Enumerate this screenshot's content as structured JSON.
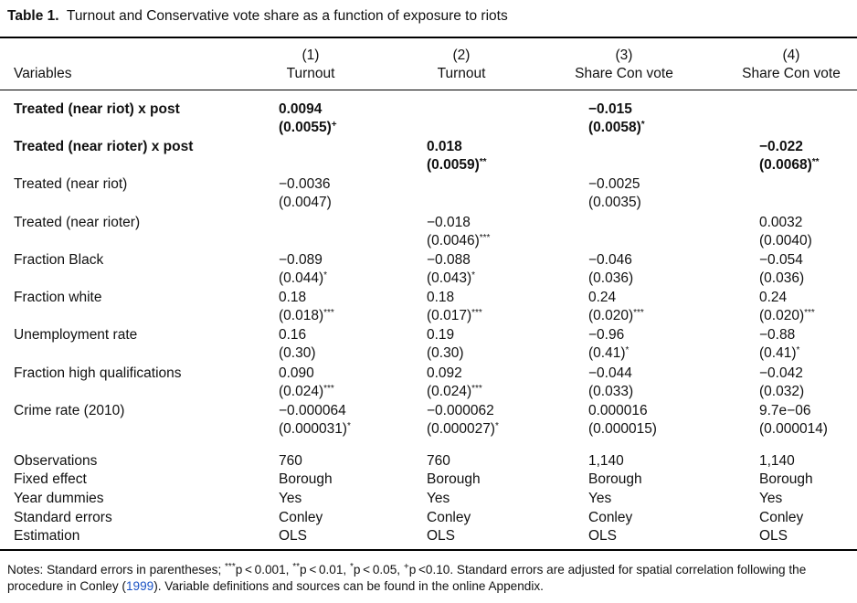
{
  "caption": {
    "label": "Table 1.",
    "title": "Turnout and Conservative vote share as a function of exposure to riots"
  },
  "header": {
    "variables_label": "Variables",
    "columns": [
      {
        "num": "(1)",
        "name": "Turnout"
      },
      {
        "num": "(2)",
        "name": "Turnout"
      },
      {
        "num": "(3)",
        "name": "Share Con vote"
      },
      {
        "num": "(4)",
        "name": "Share Con vote"
      }
    ]
  },
  "rows": [
    {
      "label": "Treated (near riot) x post",
      "bold": true,
      "cells": [
        {
          "v": "0.0094",
          "se": "(0.0055)",
          "sig": "+"
        },
        null,
        {
          "v": "−0.015",
          "se": "(0.0058)",
          "sig": "*"
        },
        null
      ]
    },
    {
      "label": "Treated (near rioter) x post",
      "bold": true,
      "cells": [
        null,
        {
          "v": "0.018",
          "se": "(0.0059)",
          "sig": "**"
        },
        null,
        {
          "v": "−0.022",
          "se": "(0.0068)",
          "sig": "**"
        }
      ]
    },
    {
      "label": "Treated (near riot)",
      "bold": false,
      "cells": [
        {
          "v": "−0.0036",
          "se": "(0.0047)",
          "sig": ""
        },
        null,
        {
          "v": "−0.0025",
          "se": "(0.0035)",
          "sig": ""
        },
        null
      ]
    },
    {
      "label": "Treated (near rioter)",
      "bold": false,
      "cells": [
        null,
        {
          "v": "−0.018",
          "se": "(0.0046)",
          "sig": "***"
        },
        null,
        {
          "v": "0.0032",
          "se": "(0.0040)",
          "sig": ""
        }
      ]
    },
    {
      "label": "Fraction Black",
      "bold": false,
      "cells": [
        {
          "v": "−0.089",
          "se": "(0.044)",
          "sig": "*"
        },
        {
          "v": "−0.088",
          "se": "(0.043)",
          "sig": "*"
        },
        {
          "v": "−0.046",
          "se": "(0.036)",
          "sig": ""
        },
        {
          "v": "−0.054",
          "se": "(0.036)",
          "sig": ""
        }
      ]
    },
    {
      "label": "Fraction white",
      "bold": false,
      "cells": [
        {
          "v": "0.18",
          "se": "(0.018)",
          "sig": "***"
        },
        {
          "v": "0.18",
          "se": "(0.017)",
          "sig": "***"
        },
        {
          "v": "0.24",
          "se": "(0.020)",
          "sig": "***"
        },
        {
          "v": "0.24",
          "se": "(0.020)",
          "sig": "***"
        }
      ]
    },
    {
      "label": "Unemployment rate",
      "bold": false,
      "cells": [
        {
          "v": "0.16",
          "se": "(0.30)",
          "sig": ""
        },
        {
          "v": "0.19",
          "se": "(0.30)",
          "sig": ""
        },
        {
          "v": "−0.96",
          "se": "(0.41)",
          "sig": "*"
        },
        {
          "v": "−0.88",
          "se": "(0.41)",
          "sig": "*"
        }
      ]
    },
    {
      "label": "Fraction high qualifications",
      "bold": false,
      "cells": [
        {
          "v": "0.090",
          "se": "(0.024)",
          "sig": "***"
        },
        {
          "v": "0.092",
          "se": "(0.024)",
          "sig": "***"
        },
        {
          "v": "−0.044",
          "se": "(0.033)",
          "sig": ""
        },
        {
          "v": "−0.042",
          "se": "(0.032)",
          "sig": ""
        }
      ]
    },
    {
      "label": "Crime rate (2010)",
      "bold": false,
      "cells": [
        {
          "v": "−0.000064",
          "se": "(0.000031)",
          "sig": "*"
        },
        {
          "v": "−0.000062",
          "se": "(0.000027)",
          "sig": "*"
        },
        {
          "v": "0.000016",
          "se": "(0.000015)",
          "sig": ""
        },
        {
          "v": "9.7e−06",
          "se": "(0.000014)",
          "sig": ""
        }
      ]
    }
  ],
  "footer_rows": [
    {
      "label": "Observations",
      "cells": [
        "760",
        "760",
        "1,140",
        "1,140"
      ]
    },
    {
      "label": "Fixed effect",
      "cells": [
        "Borough",
        "Borough",
        "Borough",
        "Borough"
      ]
    },
    {
      "label": "Year dummies",
      "cells": [
        "Yes",
        "Yes",
        "Yes",
        "Yes"
      ]
    },
    {
      "label": "Standard errors",
      "cells": [
        "Conley",
        "Conley",
        "Conley",
        "Conley"
      ]
    },
    {
      "label": "Estimation",
      "cells": [
        "OLS",
        "OLS",
        "OLS",
        "OLS"
      ]
    }
  ],
  "notes": {
    "line1_before": "Notes: Standard errors in parentheses; ",
    "sig_legend": [
      {
        "mark": "***",
        "text": "p < 0.001, "
      },
      {
        "mark": "**",
        "text": "p < 0.01, "
      },
      {
        "mark": "*",
        "text": "p < 0.05, "
      },
      {
        "mark": "+",
        "text": "p <0.10."
      }
    ],
    "line1_after": " Standard errors are adjusted for spatial correlation following the procedure in Conley (",
    "citation_year": "1999",
    "line2_after": "). Variable definitions and sources can be found in the online Appendix."
  }
}
